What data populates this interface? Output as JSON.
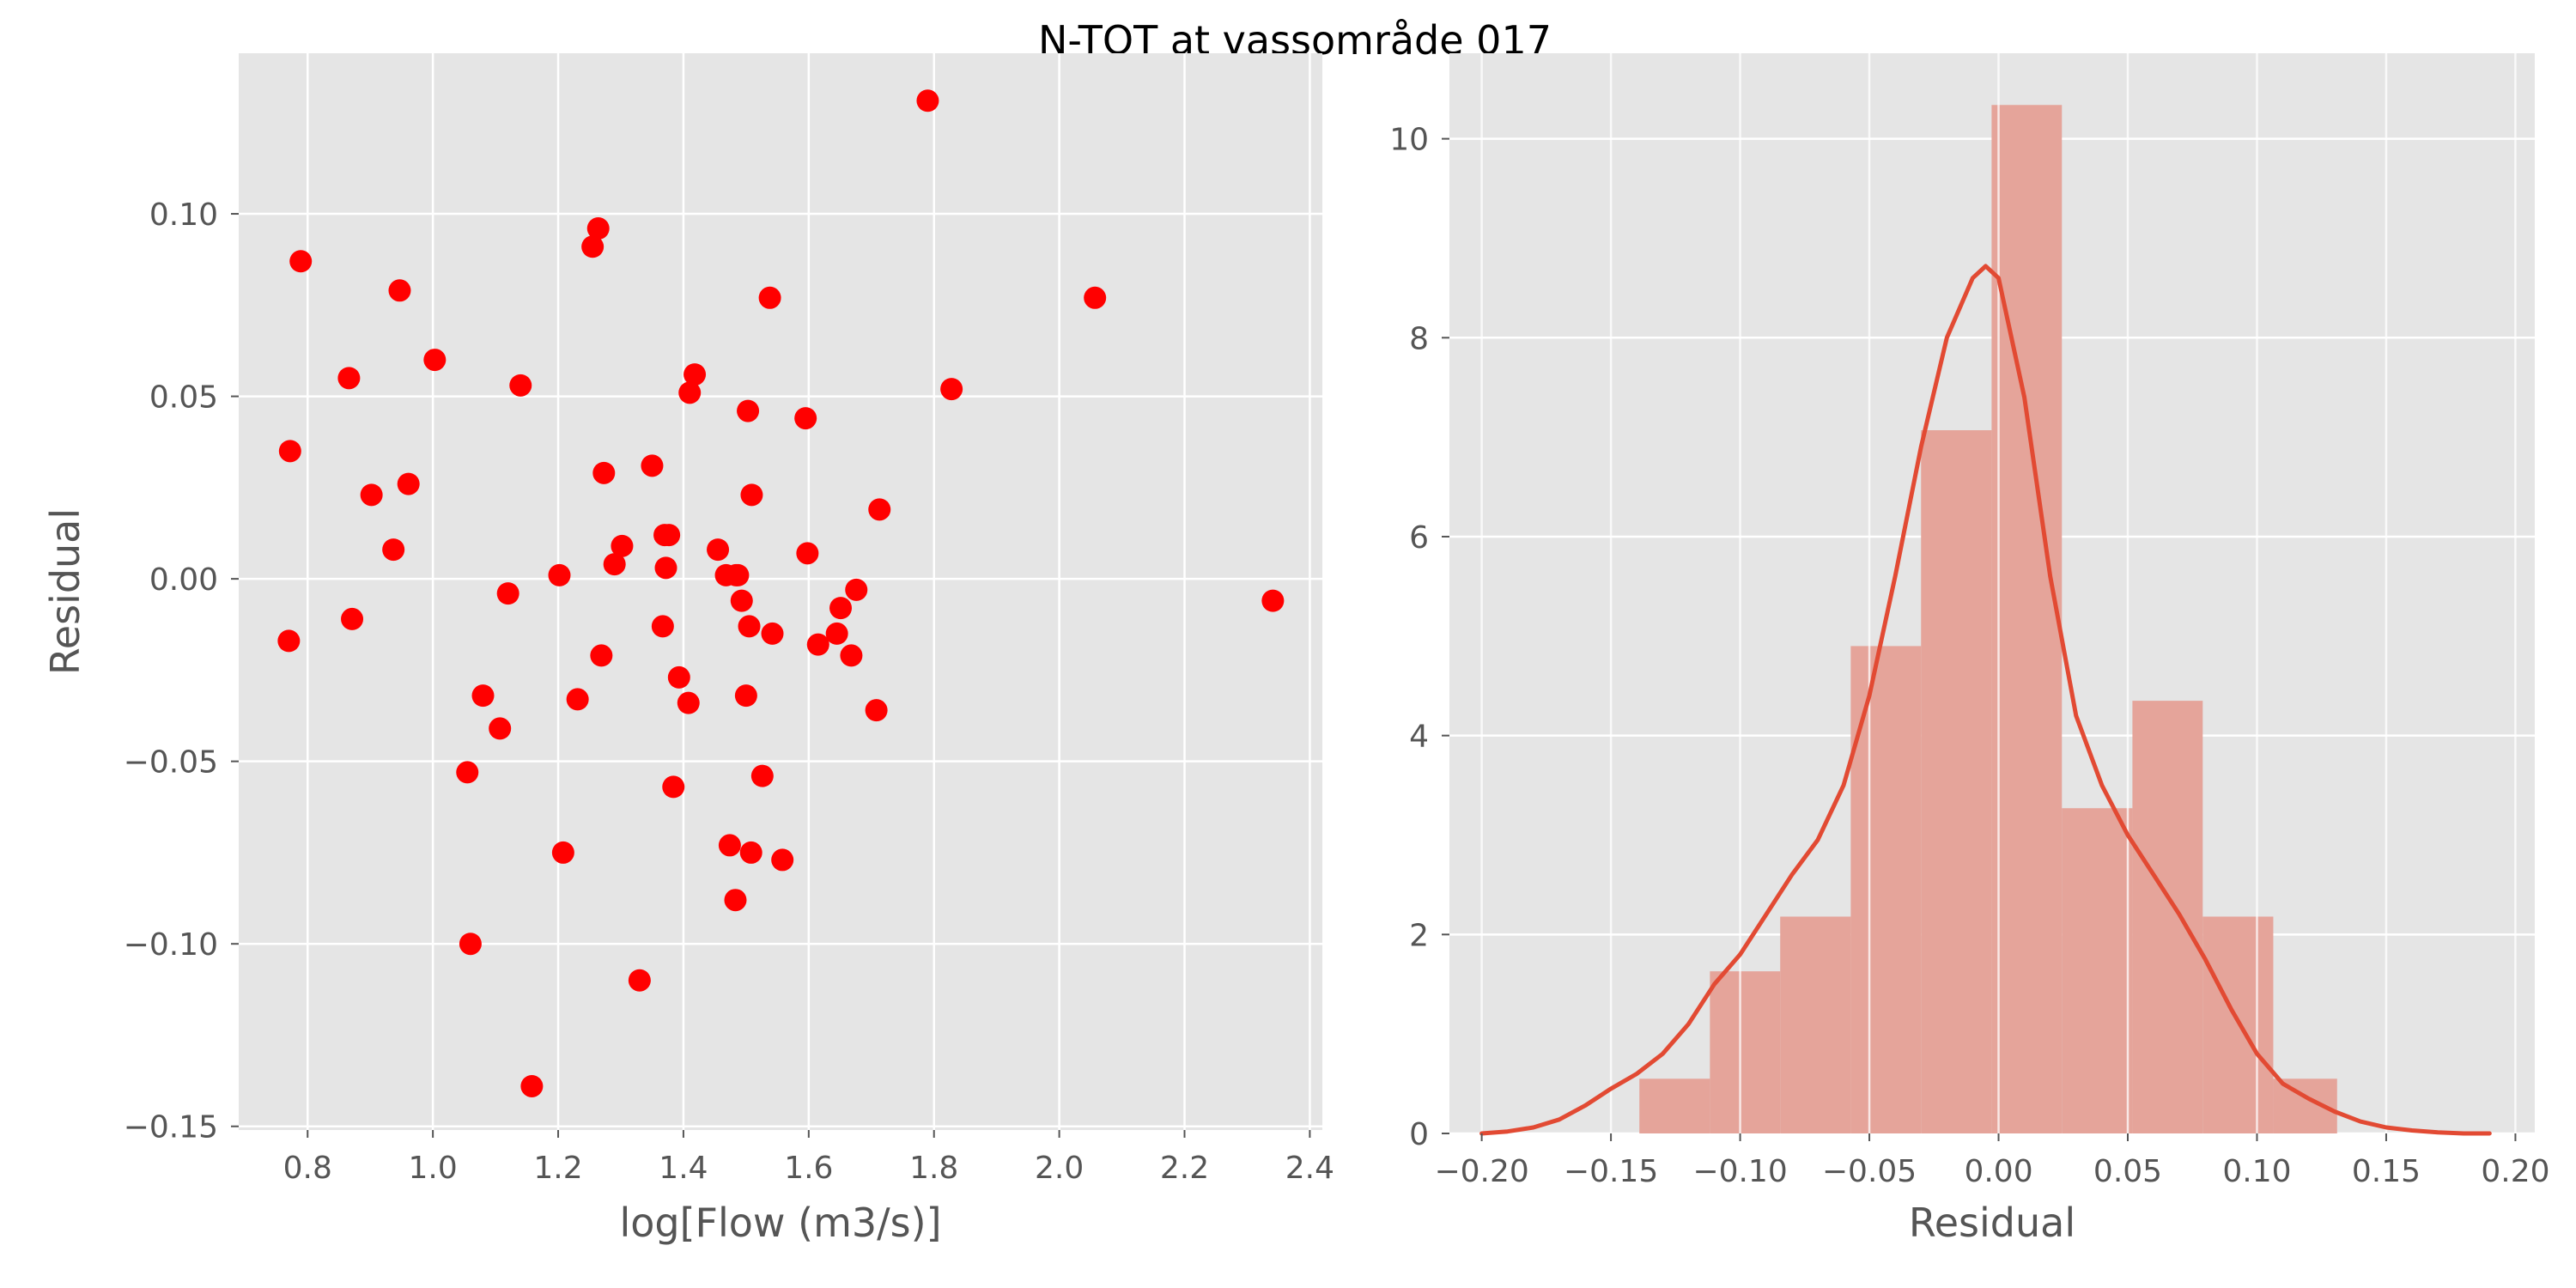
{
  "figure": {
    "title": "N-TOT at vassområde 017"
  },
  "colors": {
    "panel_bg": "#e5e5e5",
    "grid": "#ffffff",
    "tick_text": "#555555",
    "scatter_point": "#ff0000",
    "hist_bar": "#e5a49a",
    "kde_line": "#e24a33"
  },
  "chart_data": [
    {
      "type": "scatter",
      "xlabel": "log[Flow (m3/s)]",
      "ylabel": "Residual",
      "xlim": [
        0.69,
        2.42
      ],
      "ylim": [
        -0.151,
        0.144
      ],
      "grid": true,
      "x_ticks": [
        0.8,
        1.0,
        1.2,
        1.4,
        1.6,
        1.8,
        2.0,
        2.2,
        2.4
      ],
      "x_tick_labels": [
        "0.8",
        "1.0",
        "1.2",
        "1.4",
        "1.6",
        "1.8",
        "2.0",
        "2.2",
        "2.4"
      ],
      "y_ticks": [
        -0.15,
        -0.1,
        -0.05,
        0.0,
        0.05,
        0.1
      ],
      "y_tick_labels": [
        "−0.15",
        "−0.10",
        "−0.05",
        "0.00",
        "0.05",
        "0.10"
      ],
      "points": [
        {
          "x": 0.77,
          "y": -0.017
        },
        {
          "x": 0.772,
          "y": 0.035
        },
        {
          "x": 0.789,
          "y": 0.087
        },
        {
          "x": 0.866,
          "y": 0.055
        },
        {
          "x": 0.871,
          "y": -0.011
        },
        {
          "x": 0.902,
          "y": 0.023
        },
        {
          "x": 0.937,
          "y": 0.008
        },
        {
          "x": 0.947,
          "y": 0.079
        },
        {
          "x": 0.961,
          "y": 0.026
        },
        {
          "x": 1.003,
          "y": 0.06
        },
        {
          "x": 1.055,
          "y": -0.053
        },
        {
          "x": 1.06,
          "y": -0.1
        },
        {
          "x": 1.08,
          "y": -0.032
        },
        {
          "x": 1.107,
          "y": -0.041
        },
        {
          "x": 1.12,
          "y": -0.004
        },
        {
          "x": 1.14,
          "y": 0.053
        },
        {
          "x": 1.158,
          "y": -0.139
        },
        {
          "x": 1.202,
          "y": 0.001
        },
        {
          "x": 1.208,
          "y": -0.075
        },
        {
          "x": 1.231,
          "y": -0.033
        },
        {
          "x": 1.255,
          "y": 0.091
        },
        {
          "x": 1.264,
          "y": 0.096
        },
        {
          "x": 1.269,
          "y": -0.021
        },
        {
          "x": 1.273,
          "y": 0.029
        },
        {
          "x": 1.29,
          "y": 0.004
        },
        {
          "x": 1.302,
          "y": 0.009
        },
        {
          "x": 1.33,
          "y": -0.11
        },
        {
          "x": 1.35,
          "y": 0.031
        },
        {
          "x": 1.367,
          "y": -0.013
        },
        {
          "x": 1.37,
          "y": 0.012
        },
        {
          "x": 1.372,
          "y": 0.003
        },
        {
          "x": 1.377,
          "y": 0.012
        },
        {
          "x": 1.384,
          "y": -0.057
        },
        {
          "x": 1.393,
          "y": -0.027
        },
        {
          "x": 1.408,
          "y": -0.034
        },
        {
          "x": 1.41,
          "y": 0.051
        },
        {
          "x": 1.418,
          "y": 0.056
        },
        {
          "x": 1.455,
          "y": 0.008
        },
        {
          "x": 1.468,
          "y": 0.001
        },
        {
          "x": 1.474,
          "y": -0.073
        },
        {
          "x": 1.483,
          "y": -0.088
        },
        {
          "x": 1.484,
          "y": 0.001
        },
        {
          "x": 1.487,
          "y": 0.001
        },
        {
          "x": 1.493,
          "y": -0.006
        },
        {
          "x": 1.5,
          "y": -0.032
        },
        {
          "x": 1.503,
          "y": 0.046
        },
        {
          "x": 1.505,
          "y": -0.013
        },
        {
          "x": 1.508,
          "y": -0.075
        },
        {
          "x": 1.509,
          "y": 0.023
        },
        {
          "x": 1.526,
          "y": -0.054
        },
        {
          "x": 1.538,
          "y": 0.077
        },
        {
          "x": 1.542,
          "y": -0.015
        },
        {
          "x": 1.558,
          "y": -0.077
        },
        {
          "x": 1.595,
          "y": 0.044
        },
        {
          "x": 1.598,
          "y": 0.007
        },
        {
          "x": 1.615,
          "y": -0.018
        },
        {
          "x": 1.645,
          "y": -0.015
        },
        {
          "x": 1.651,
          "y": -0.008
        },
        {
          "x": 1.668,
          "y": -0.021
        },
        {
          "x": 1.676,
          "y": -0.003
        },
        {
          "x": 1.708,
          "y": -0.036
        },
        {
          "x": 1.713,
          "y": 0.019
        },
        {
          "x": 1.79,
          "y": 0.131
        },
        {
          "x": 1.828,
          "y": 0.052
        },
        {
          "x": 2.057,
          "y": 0.077
        },
        {
          "x": 2.341,
          "y": -0.006
        }
      ]
    },
    {
      "type": "bar",
      "subtype": "histogram-with-kde",
      "xlabel": "Residual",
      "ylabel": "",
      "xlim": [
        -0.2125,
        0.2075
      ],
      "ylim": [
        0,
        10.86
      ],
      "grid": true,
      "x_ticks": [
        -0.2,
        -0.15,
        -0.1,
        -0.05,
        0.0,
        0.05,
        0.1,
        0.15,
        0.2
      ],
      "x_tick_labels": [
        "−0.20",
        "−0.15",
        "−0.10",
        "−0.05",
        "0.00",
        "0.05",
        "0.10",
        "0.15",
        "0.20"
      ],
      "y_ticks": [
        0,
        2,
        4,
        6,
        8,
        10
      ],
      "y_tick_labels": [
        "0",
        "2",
        "4",
        "6",
        "8",
        "10"
      ],
      "bin_edges": [
        -0.139,
        -0.1117,
        -0.0845,
        -0.0572,
        -0.03,
        -0.0027,
        0.0245,
        0.0518,
        0.079,
        0.1063,
        0.131
      ],
      "density": [
        0.55,
        1.63,
        2.18,
        4.9,
        7.07,
        10.34,
        3.27,
        4.35,
        2.18,
        0.55
      ],
      "kde": {
        "x": [
          -0.2,
          -0.19,
          -0.18,
          -0.17,
          -0.16,
          -0.15,
          -0.14,
          -0.13,
          -0.12,
          -0.11,
          -0.1,
          -0.09,
          -0.08,
          -0.07,
          -0.06,
          -0.05,
          -0.04,
          -0.03,
          -0.02,
          -0.01,
          -0.005,
          0.0,
          0.01,
          0.02,
          0.03,
          0.04,
          0.05,
          0.06,
          0.07,
          0.08,
          0.09,
          0.1,
          0.11,
          0.12,
          0.13,
          0.14,
          0.15,
          0.16,
          0.17,
          0.18,
          0.19
        ],
        "y": [
          0.0,
          0.02,
          0.06,
          0.14,
          0.28,
          0.45,
          0.6,
          0.8,
          1.1,
          1.5,
          1.8,
          2.2,
          2.6,
          2.95,
          3.5,
          4.4,
          5.6,
          6.9,
          8.0,
          8.6,
          8.72,
          8.6,
          7.4,
          5.6,
          4.2,
          3.5,
          3.0,
          2.6,
          2.2,
          1.75,
          1.25,
          0.8,
          0.5,
          0.35,
          0.22,
          0.12,
          0.06,
          0.03,
          0.01,
          0.0,
          0.0
        ]
      }
    }
  ]
}
